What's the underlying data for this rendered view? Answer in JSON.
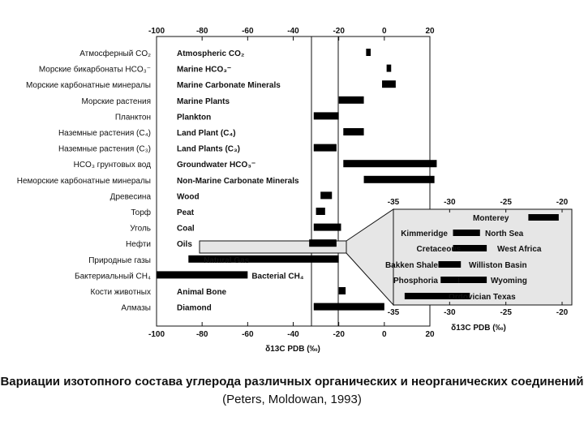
{
  "chart_data": {
    "type": "bar",
    "title": "",
    "xlabel": "δ13C PDB (‰)",
    "xlim": [
      -100,
      20
    ],
    "xticks": [
      -100,
      -80,
      -60,
      -40,
      -20,
      0,
      20
    ],
    "reference_lines": [
      -32,
      -20
    ],
    "categories": [
      {
        "ru": "Атмосферный CO₂",
        "en": "Atmospheric CO₂",
        "range": [
          -8,
          -6
        ]
      },
      {
        "ru": "Морские бикарбонаты HCO₃⁻",
        "en": "Marine HCO₃⁻",
        "range": [
          1,
          3
        ]
      },
      {
        "ru": "Морские карбонатные минералы",
        "en": "Marine Carbonate Minerals",
        "range": [
          -1,
          5
        ]
      },
      {
        "ru": "Морские растения",
        "en": "Marine Plants",
        "range": [
          -20,
          -9
        ]
      },
      {
        "ru": "Планктон",
        "en": "Plankton",
        "range": [
          -31,
          -20
        ]
      },
      {
        "ru": "Наземные растения (C₄)",
        "en": "Land Plant (C₄)",
        "range": [
          -18,
          -9
        ]
      },
      {
        "ru": "Наземные растения (C₃)",
        "en": "Land Plants (C₃)",
        "range": [
          -31,
          -21
        ]
      },
      {
        "ru": "HCO₃ грунтовых вод",
        "en": "Groundwater HCO₃⁻",
        "range": [
          -18,
          23
        ]
      },
      {
        "ru": "Неморские карбонатные минералы",
        "en": "Non-Marine Carbonate Minerals",
        "range": [
          -9,
          22
        ]
      },
      {
        "ru": "Древесина",
        "en": "Wood",
        "range": [
          -28,
          -23
        ]
      },
      {
        "ru": "Торф",
        "en": "Peat",
        "range": [
          -30,
          -26
        ]
      },
      {
        "ru": "Уголь",
        "en": "Coal",
        "range": [
          -31,
          -19
        ]
      },
      {
        "ru": "Нефти",
        "en": "Oils",
        "range": [
          -33,
          -21
        ]
      },
      {
        "ru": "Природные газы",
        "en": "Natural Gas",
        "range": [
          -86,
          -20
        ]
      },
      {
        "ru": "Бактериальный CH₄",
        "en": "Bacterial CH₄",
        "range": [
          -100,
          -60
        ]
      },
      {
        "ru": "Кости животных",
        "en": "Animal Bone",
        "range": [
          -20,
          -17
        ]
      },
      {
        "ru": "Алмазы",
        "en": "Diamond",
        "range": [
          -31,
          0
        ]
      }
    ],
    "inset": {
      "xlim": [
        -35,
        -20
      ],
      "xticks": [
        -35,
        -30,
        -25,
        -20
      ],
      "series": [
        {
          "name": "Monterey",
          "range": [
            -23,
            -20.3
          ]
        },
        {
          "name": "North Sea",
          "range": [
            -29.5,
            -27.3
          ]
        },
        {
          "name": "Kimmeridge",
          "range": [
            -29.7,
            -28
          ]
        },
        {
          "name": "West Africa",
          "range": [
            -28.2,
            -26.7
          ]
        },
        {
          "name": "Cretaceous",
          "range": [
            -29.7,
            -27.8
          ]
        },
        {
          "name": "Williston Basin",
          "range": [
            -31,
            -29
          ]
        },
        {
          "name": "Bakken Shale",
          "range": [
            -30.8,
            -29.3
          ]
        },
        {
          "name": "Wyoming",
          "range": [
            -29.2,
            -26.7
          ]
        },
        {
          "name": "Phosphoria",
          "range": [
            -30.8,
            -29.2
          ]
        },
        {
          "name": "Ordovician Texas",
          "range": [
            -34,
            -28.2
          ]
        }
      ]
    }
  },
  "caption": {
    "text": "Вариации изотопного состава углерода различных органических и неорганических соединений",
    "citation": "(Peters, Moldowan, 1993)"
  }
}
